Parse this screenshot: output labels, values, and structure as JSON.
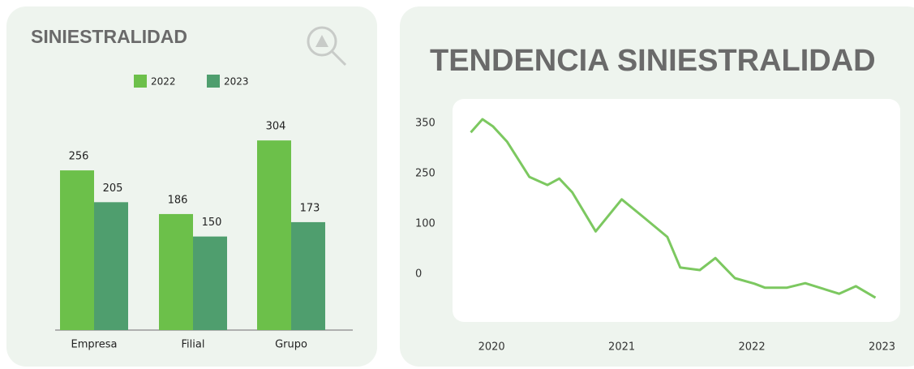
{
  "chart_data": [
    {
      "type": "bar",
      "title": "SINIESTRALIDAD",
      "categories": [
        "Empresa",
        "Filial",
        "Grupo"
      ],
      "series": [
        {
          "name": "2022",
          "color": "#6cc04a",
          "values": [
            256,
            186,
            304
          ]
        },
        {
          "name": "2023",
          "color": "#4f9e6e",
          "values": [
            205,
            150,
            173
          ]
        }
      ]
    },
    {
      "type": "line",
      "title": "TENDENCIA SINIESTRALIDAD",
      "x": [
        2019.84,
        2019.93,
        2020.01,
        2020.12,
        2020.29,
        2020.43,
        2020.52,
        2020.62,
        2020.8,
        2021.0,
        2021.17,
        2021.35,
        2021.45,
        2021.6,
        2021.72,
        2021.87,
        2022.02,
        2022.1,
        2022.27,
        2022.41,
        2022.67,
        2022.8,
        2022.95
      ],
      "values": [
        332,
        358,
        344,
        313,
        240,
        216,
        235,
        194,
        85,
        173,
        119,
        74,
        13,
        8,
        32,
        -8,
        -19,
        -27,
        -27,
        -18,
        -39,
        -24,
        -47
      ],
      "color": "#7cc860",
      "xlim": [
        2019.7,
        2023.14
      ],
      "xticks": [
        2020,
        2021,
        2022,
        2023
      ],
      "ylim": [
        -95,
        398
      ],
      "yticks": [
        350,
        250,
        100,
        0
      ]
    }
  ]
}
